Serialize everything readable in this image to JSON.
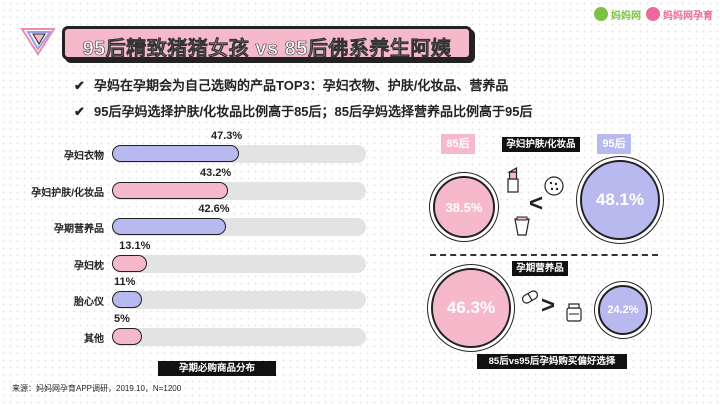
{
  "header": {
    "title": "95后精致猪猪女孩 vs 85后佛系养生阿姨",
    "brand_left": "妈妈网",
    "brand_right": "妈妈网孕育"
  },
  "bullets": [
    "孕妈在孕期会为自己选购的产品TOP3：孕妇衣物、护肤/化妆品、营养品",
    "95后孕妈选择护肤/化妆品比例高于85后；85后孕妈选择营养品比例高于95后"
  ],
  "chart_data": [
    {
      "type": "bar",
      "orientation": "horizontal",
      "title": "孕期必购商品分布",
      "categories": [
        "孕妇衣物",
        "孕妇护肤/化妆品",
        "孕期营养品",
        "孕妇枕",
        "胎心仪",
        "其他"
      ],
      "values": [
        47.3,
        43.2,
        42.6,
        13.1,
        11,
        5
      ],
      "value_labels": [
        "47.3%",
        "43.2%",
        "42.6%",
        "13.1%",
        "11%",
        "5%"
      ],
      "xlim": [
        0,
        100
      ],
      "unit": "%",
      "colors": [
        "#b8b9ee",
        "#f6b9cb",
        "#b8b9ee",
        "#f6b9cb",
        "#b8b9ee",
        "#f6b9cb"
      ]
    },
    {
      "type": "bubble-comparison",
      "title": "85后vs95后孕妈购买偏好选择",
      "groups": [
        "85后",
        "95后"
      ],
      "items": [
        {
          "label": "孕妇护肤/化妆品",
          "values": [
            38.5,
            48.1
          ],
          "value_labels": [
            "38.5%",
            "48.1%"
          ],
          "comparison": "<"
        },
        {
          "label": "孕期营养品",
          "values": [
            46.3,
            24.2
          ],
          "value_labels": [
            "46.3%",
            "24.2%"
          ],
          "comparison": ">"
        }
      ],
      "colors": {
        "85后": "#f6b9cb",
        "95后": "#b8b9ee"
      }
    }
  ],
  "source": "来源：妈妈网孕育APP调研，2019.10，N=1200",
  "icons": [
    "check-icon",
    "lipstick-icon",
    "powder-puff-icon",
    "cream-tube-icon",
    "pill-capsule-icon",
    "supplement-jar-icon",
    "triangle-logo-icon"
  ]
}
